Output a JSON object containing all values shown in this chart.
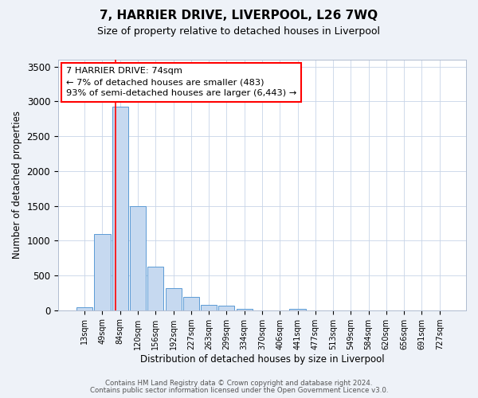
{
  "title": "7, HARRIER DRIVE, LIVERPOOL, L26 7WQ",
  "subtitle": "Size of property relative to detached houses in Liverpool",
  "xlabel": "Distribution of detached houses by size in Liverpool",
  "ylabel": "Number of detached properties",
  "bar_labels": [
    "13sqm",
    "49sqm",
    "84sqm",
    "120sqm",
    "156sqm",
    "192sqm",
    "227sqm",
    "263sqm",
    "299sqm",
    "334sqm",
    "370sqm",
    "406sqm",
    "441sqm",
    "477sqm",
    "513sqm",
    "549sqm",
    "584sqm",
    "620sqm",
    "656sqm",
    "691sqm",
    "727sqm"
  ],
  "bar_values": [
    40,
    1100,
    2920,
    1490,
    630,
    320,
    195,
    75,
    60,
    25,
    0,
    0,
    25,
    0,
    0,
    0,
    0,
    0,
    0,
    0,
    0
  ],
  "bar_color": "#c6d9f0",
  "bar_edge_color": "#5b9bd5",
  "ylim": [
    0,
    3600
  ],
  "yticks": [
    0,
    500,
    1000,
    1500,
    2000,
    2500,
    3000,
    3500
  ],
  "red_line_index": 1.74,
  "annotation_title": "7 HARRIER DRIVE: 74sqm",
  "annotation_line1": "← 7% of detached houses are smaller (483)",
  "annotation_line2": "93% of semi-detached houses are larger (6,443) →",
  "footer1": "Contains HM Land Registry data © Crown copyright and database right 2024.",
  "footer2": "Contains public sector information licensed under the Open Government Licence v3.0.",
  "bg_color": "#eef2f8",
  "plot_bg_color": "#ffffff",
  "grid_color": "#c8d4e8"
}
